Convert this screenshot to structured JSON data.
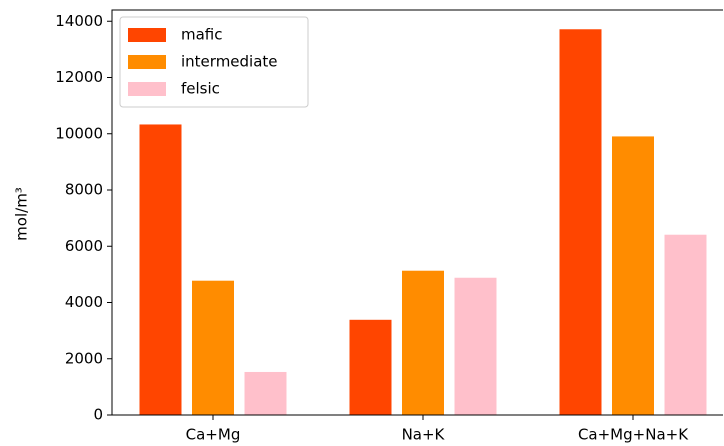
{
  "chart_data": {
    "type": "bar",
    "y_label": "mol/m³",
    "categories": [
      "Ca+Mg",
      "Na+K",
      "Ca+Mg+Na+K"
    ],
    "series": [
      {
        "name": "mafic",
        "color": "#ff4500",
        "values": [
          10330,
          3385,
          13715
        ]
      },
      {
        "name": "intermediate",
        "color": "#ff8c00",
        "values": [
          4775,
          5130,
          9905
        ]
      },
      {
        "name": "felsic",
        "color": "#ffc0cb",
        "values": [
          1530,
          4880,
          6410
        ]
      }
    ],
    "ylim": [
      0,
      14400
    ],
    "yticks": [
      0,
      2000,
      4000,
      6000,
      8000,
      10000,
      12000,
      14000
    ],
    "legend": "upper left"
  }
}
